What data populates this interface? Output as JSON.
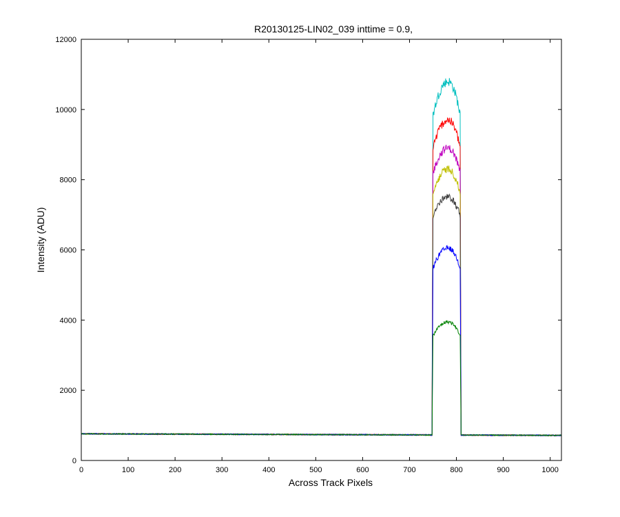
{
  "chart_data": {
    "type": "line",
    "title": "R20130125-LIN02_039 inttime = 0.9,",
    "xlabel": "Across Track Pixels",
    "ylabel": "Intensity (ADU)",
    "xlim": [
      0,
      1024
    ],
    "ylim": [
      0,
      12000
    ],
    "x_ticks": [
      0,
      100,
      200,
      300,
      400,
      500,
      600,
      700,
      800,
      900,
      1000
    ],
    "y_ticks": [
      0,
      2000,
      4000,
      6000,
      8000,
      10000,
      12000
    ],
    "grid": false,
    "baseline": {
      "left": 760,
      "right": 715
    },
    "signal_region": {
      "x_start": 748,
      "x_end": 810,
      "x_peak": 782
    },
    "series": [
      {
        "color": "#00BFBF",
        "peak": 10800,
        "edge": 9700
      },
      {
        "color": "#FF0000",
        "peak": 9700,
        "edge": 8800
      },
      {
        "color": "#BF00BF",
        "peak": 8900,
        "edge": 8100
      },
      {
        "color": "#BFBF00",
        "peak": 8300,
        "edge": 7500
      },
      {
        "color": "#404040",
        "peak": 7500,
        "edge": 6900
      },
      {
        "color": "#0000FF",
        "peak": 6050,
        "edge": 5400
      },
      {
        "color": "#008000",
        "peak": 3950,
        "edge": 3500
      }
    ]
  }
}
